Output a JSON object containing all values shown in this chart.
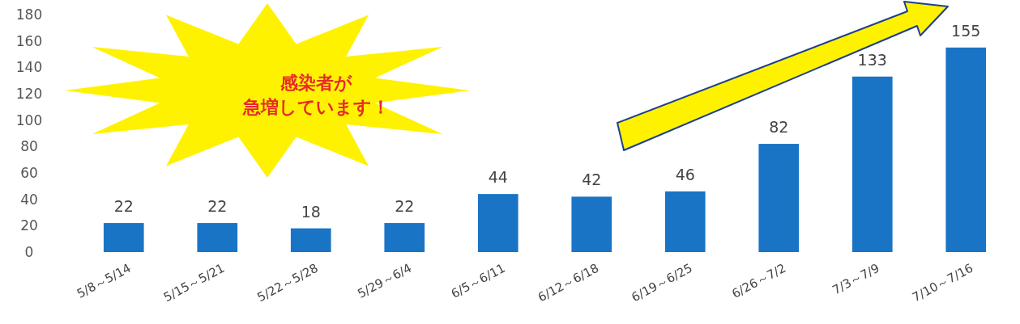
{
  "chart_data": {
    "type": "bar",
    "categories": [
      "5/8～5/14",
      "5/15～5/21",
      "5/22～5/28",
      "5/29～6/4",
      "6/5～6/11",
      "6/12～6/18",
      "6/19～6/25",
      "6/26～7/2",
      "7/3～7/9",
      "7/10～7/16"
    ],
    "values": [
      22,
      22,
      18,
      22,
      44,
      42,
      46,
      82,
      133,
      155
    ],
    "color": "#1a74c6",
    "ylim": [
      0,
      180
    ],
    "yticks": [
      0,
      20,
      40,
      60,
      80,
      100,
      120,
      140,
      160,
      180
    ],
    "data_labels": true,
    "annotations": [
      "感染者が",
      "急増しています！"
    ]
  }
}
